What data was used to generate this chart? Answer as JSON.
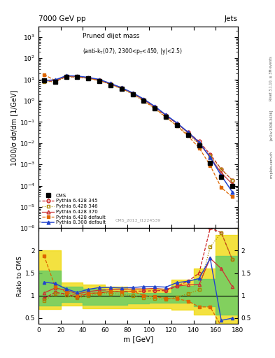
{
  "title_top": "7000 GeV pp",
  "title_right": "Jets",
  "plot_title_line1": "Pruned dijet mass",
  "plot_title_line2": "(anti-k_{T}(0.7), 2300<p_{T}<450, |y|<2.5)",
  "xlabel": "m [GeV]",
  "ylabel_main": "1000/σ dσ/dm [1/GeV]",
  "ylabel_ratio": "Ratio to CMS",
  "watermark": "CMS_2013_I1224539",
  "rivet_label": "Rivet 3.1.10, ≥ 3M events",
  "arxiv_label": "[arXiv:1306.3436]",
  "mcplots_label": "mcplots.cern.ch",
  "m_bins": [
    5,
    15,
    25,
    35,
    45,
    55,
    65,
    75,
    85,
    95,
    105,
    115,
    125,
    135,
    145,
    155,
    165,
    175
  ],
  "cms_y": [
    9.0,
    7.5,
    13.0,
    13.5,
    11.0,
    8.5,
    5.5,
    3.5,
    2.0,
    1.0,
    0.45,
    0.18,
    0.07,
    0.025,
    0.008,
    0.0012,
    0.00025,
    0.0001
  ],
  "cms_yerr": [
    1.0,
    0.8,
    1.2,
    1.3,
    1.0,
    0.8,
    0.5,
    0.3,
    0.2,
    0.1,
    0.04,
    0.016,
    0.006,
    0.003,
    0.001,
    0.0002,
    5e-05,
    2e-05
  ],
  "p6_345_y": [
    8.5,
    8.0,
    13.5,
    13.0,
    11.5,
    9.0,
    6.0,
    3.8,
    2.2,
    1.1,
    0.5,
    0.2,
    0.085,
    0.033,
    0.012,
    0.003,
    0.0006,
    0.00018
  ],
  "p6_346_y": [
    8.0,
    7.8,
    13.2,
    12.8,
    11.0,
    8.8,
    5.8,
    3.6,
    2.0,
    0.95,
    0.42,
    0.165,
    0.068,
    0.026,
    0.009,
    0.0025,
    0.0006,
    0.00018
  ],
  "p6_370_y": [
    9.5,
    8.8,
    14.5,
    14.0,
    12.0,
    9.5,
    6.2,
    4.0,
    2.3,
    1.15,
    0.52,
    0.205,
    0.085,
    0.031,
    0.01,
    0.0022,
    0.0004,
    0.00012
  ],
  "p6_def_y": [
    17.0,
    9.0,
    14.0,
    13.5,
    11.5,
    9.0,
    6.0,
    3.8,
    2.2,
    1.0,
    0.44,
    0.17,
    0.065,
    0.022,
    0.006,
    0.0009,
    8e-05,
    3e-05
  ],
  "p8_def_y": [
    9.0,
    9.5,
    15.0,
    14.5,
    12.5,
    10.0,
    6.5,
    4.1,
    2.35,
    1.2,
    0.54,
    0.215,
    0.09,
    0.033,
    0.011,
    0.0022,
    0.0003,
    5e-05
  ],
  "ratio_p6_345": [
    0.94,
    1.07,
    1.04,
    0.96,
    1.05,
    1.06,
    1.09,
    1.09,
    1.1,
    1.1,
    1.11,
    1.11,
    1.21,
    1.32,
    1.5,
    2.5,
    2.4,
    1.8
  ],
  "ratio_p6_346": [
    0.89,
    1.04,
    1.02,
    0.95,
    1.0,
    1.04,
    1.05,
    1.03,
    1.0,
    0.95,
    0.93,
    0.92,
    0.97,
    1.04,
    1.13,
    2.08,
    2.4,
    1.8
  ],
  "ratio_p6_370": [
    1.06,
    1.17,
    1.12,
    1.04,
    1.09,
    1.12,
    1.13,
    1.14,
    1.15,
    1.15,
    1.16,
    1.14,
    1.21,
    1.24,
    1.25,
    1.83,
    1.6,
    1.2
  ],
  "ratio_p6_def": [
    1.89,
    1.2,
    1.08,
    1.0,
    1.05,
    1.06,
    1.09,
    1.09,
    1.1,
    1.0,
    0.98,
    0.94,
    0.93,
    0.88,
    0.75,
    0.75,
    0.32,
    0.3
  ],
  "ratio_p8_def": [
    1.3,
    1.27,
    1.15,
    1.07,
    1.14,
    1.18,
    1.18,
    1.17,
    1.18,
    1.2,
    1.2,
    1.19,
    1.29,
    1.32,
    1.38,
    1.83,
    0.45,
    0.5
  ],
  "band_yellow_x": [
    0,
    10,
    20,
    40,
    60,
    80,
    100,
    120,
    140,
    160,
    180
  ],
  "band_yellow_lo": [
    0.7,
    0.7,
    0.78,
    0.72,
    0.72,
    0.72,
    0.72,
    0.68,
    0.58,
    0.38,
    0.3
  ],
  "band_yellow_hi": [
    2.0,
    2.0,
    1.3,
    1.25,
    1.2,
    1.15,
    1.15,
    1.35,
    1.6,
    2.35,
    2.5
  ],
  "band_green_x": [
    0,
    10,
    20,
    40,
    60,
    80,
    100,
    120,
    140,
    160,
    180
  ],
  "band_green_lo": [
    0.78,
    0.78,
    0.86,
    0.8,
    0.8,
    0.82,
    0.84,
    0.84,
    0.77,
    0.57,
    0.5
  ],
  "band_green_hi": [
    1.55,
    1.55,
    1.2,
    1.15,
    1.1,
    1.06,
    1.06,
    1.21,
    1.37,
    1.88,
    2.0
  ],
  "color_cms": "#000000",
  "color_p6_345": "#cc2222",
  "color_p6_346": "#aa8800",
  "color_p6_370": "#cc3333",
  "color_p6_def": "#dd6600",
  "color_p8_def": "#2244cc",
  "ylim_main": [
    1e-06,
    3000
  ],
  "ylim_ratio": [
    0.37,
    2.5
  ],
  "xlim": [
    0,
    180
  ]
}
